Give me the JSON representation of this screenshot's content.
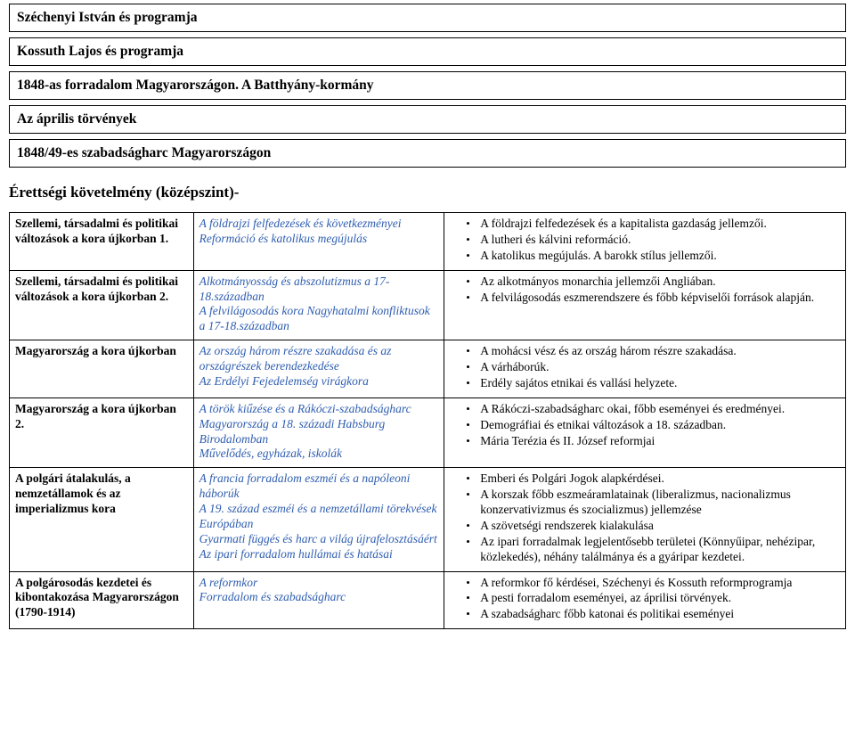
{
  "boxes": [
    "Széchenyi István és programja",
    "Kossuth Lajos és programja",
    "1848-as forradalom Magyarországon. A Batthyány-kormány",
    "Az április törvények",
    "1848/49-es szabadságharc Magyarországon"
  ],
  "sectionTitle": "Érettségi követelmény (középszint)-",
  "rows": [
    {
      "left": "Szellemi, társadalmi és politikai változások a kora újkorban 1.",
      "mid": "A földrajzi felfedezések és következményei\nReformáció és katolikus megújulás",
      "right": [
        "A földrajzi felfedezések és a kapitalista gazdaság jellemzői.",
        "A lutheri és kálvini reformáció.",
        "A katolikus megújulás. A barokk stílus jellemzői."
      ]
    },
    {
      "left": "Szellemi, társadalmi és politikai változások a kora újkorban 2.",
      "mid": "Alkotmányosság és abszolutizmus a 17-18.században\nA felvilágosodás kora Nagyhatalmi konfliktusok a 17-18.században",
      "right": [
        "Az alkotmányos monarchia jellemzői Angliában.",
        "A felvilágosodás eszmerendszere és főbb képviselői források alapján."
      ]
    },
    {
      "left": "Magyarország a kora újkorban",
      "mid": "Az ország három részre szakadása és az országrészek berendezkedése\nAz Erdélyi Fejedelemség virágkora",
      "right": [
        "A mohácsi vész és az ország három részre szakadása.",
        "A várháborúk.",
        "Erdély sajátos etnikai és vallási helyzete."
      ]
    },
    {
      "left": "Magyarország a kora újkorban 2.",
      "mid": "A török kiűzése és a Rákóczi-szabadságharc\nMagyarország a 18. századi Habsburg Birodalomban\nMűvelődés, egyházak, iskolák",
      "right": [
        "A Rákóczi-szabadságharc okai, főbb eseményei és eredményei.",
        "Demográfiai és etnikai változások a 18. században.",
        "Mária Terézia és II. József reformjai"
      ]
    },
    {
      "left": "A polgári átalakulás, a nemzetállamok és az imperializmus kora",
      "mid": "A francia forradalom eszméi és a napóleoni háborúk\nA 19. század eszméi és a nemzetállami törekvések Európában\nGyarmati függés és harc a világ újrafelosztásáért\nAz ipari forradalom hullámai és hatásai",
      "right": [
        "Emberi és Polgári Jogok alapkérdései.",
        "A korszak főbb eszmeáramlatainak (liberalizmus, nacionalizmus konzervativizmus és szocializmus) jellemzése",
        "A szövetségi rendszerek kialakulása",
        "Az ipari forradalmak legjelentősebb területei (Könnyűipar, nehézipar, közlekedés), néhány találmánya és a gyáripar kezdetei."
      ]
    },
    {
      "left": "A polgárosodás kezdetei és kibontakozása Magyarországon (1790-1914)",
      "mid": "A reformkor\nForradalom és szabadságharc",
      "right": [
        "A reformkor fő kérdései, Széchenyi és Kossuth reformprogramja",
        "A pesti forradalom eseményei, az áprilisi törvények.",
        "A szabadságharc főbb katonai és politikai eseményei"
      ]
    }
  ]
}
